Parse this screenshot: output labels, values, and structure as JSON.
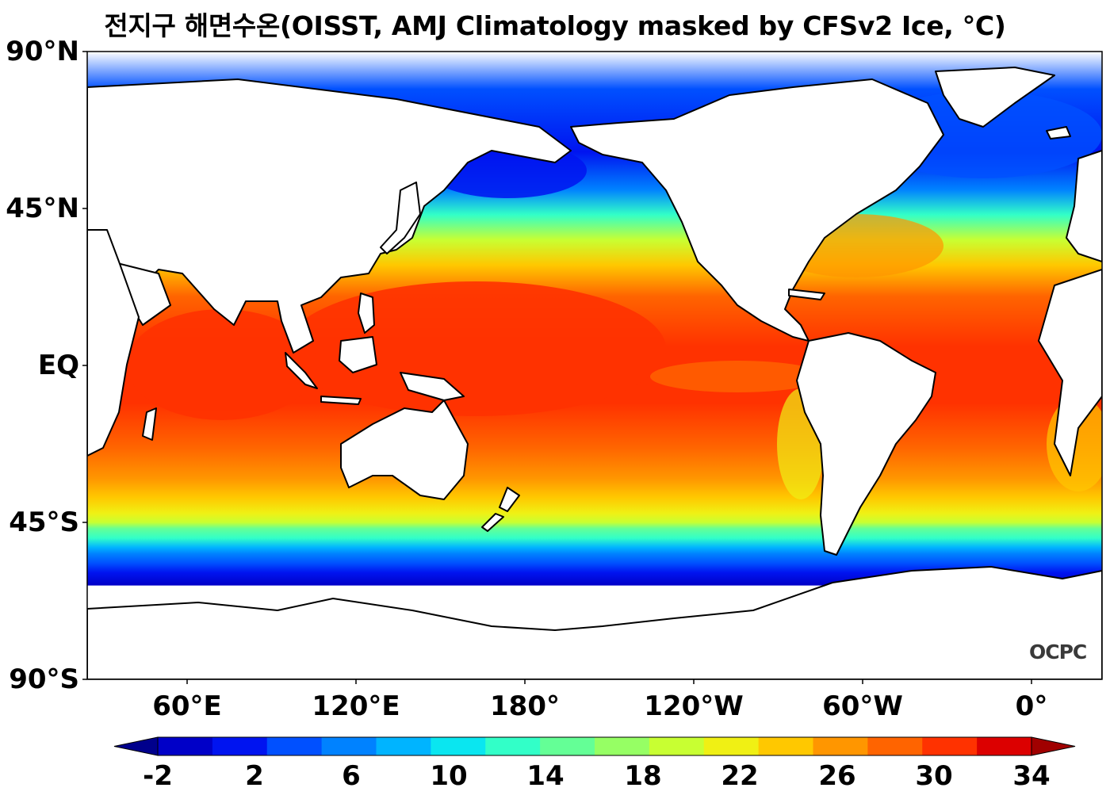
{
  "title": "전지구 해면수온(OISST, AMJ Climatology masked by CFSv2 Ice, °C)",
  "lat_labels": [
    "90°N",
    "45°N",
    "EQ",
    "45°S",
    "90°S"
  ],
  "lon_labels": [
    "60°E",
    "120°E",
    "180°",
    "120°W",
    "60°W",
    "0°"
  ],
  "colorbar": {
    "tick_labels": [
      "-2",
      "2",
      "6",
      "10",
      "14",
      "18",
      "22",
      "26",
      "30",
      "34"
    ],
    "bounds": [
      -2,
      34
    ],
    "step": 2,
    "colors": [
      "#00008c",
      "#0000c8",
      "#0014f0",
      "#0050ff",
      "#0082ff",
      "#00b4ff",
      "#0ae6f0",
      "#32ffc8",
      "#64ff96",
      "#96ff64",
      "#c8ff32",
      "#f0f014",
      "#ffc800",
      "#ff9600",
      "#ff6400",
      "#ff3200",
      "#dc0000",
      "#a00000"
    ],
    "extend": "both"
  },
  "logo": "OCPC",
  "colors": {
    "land": "#ffffff",
    "coastline": "#000000",
    "frame": "#000000"
  }
}
